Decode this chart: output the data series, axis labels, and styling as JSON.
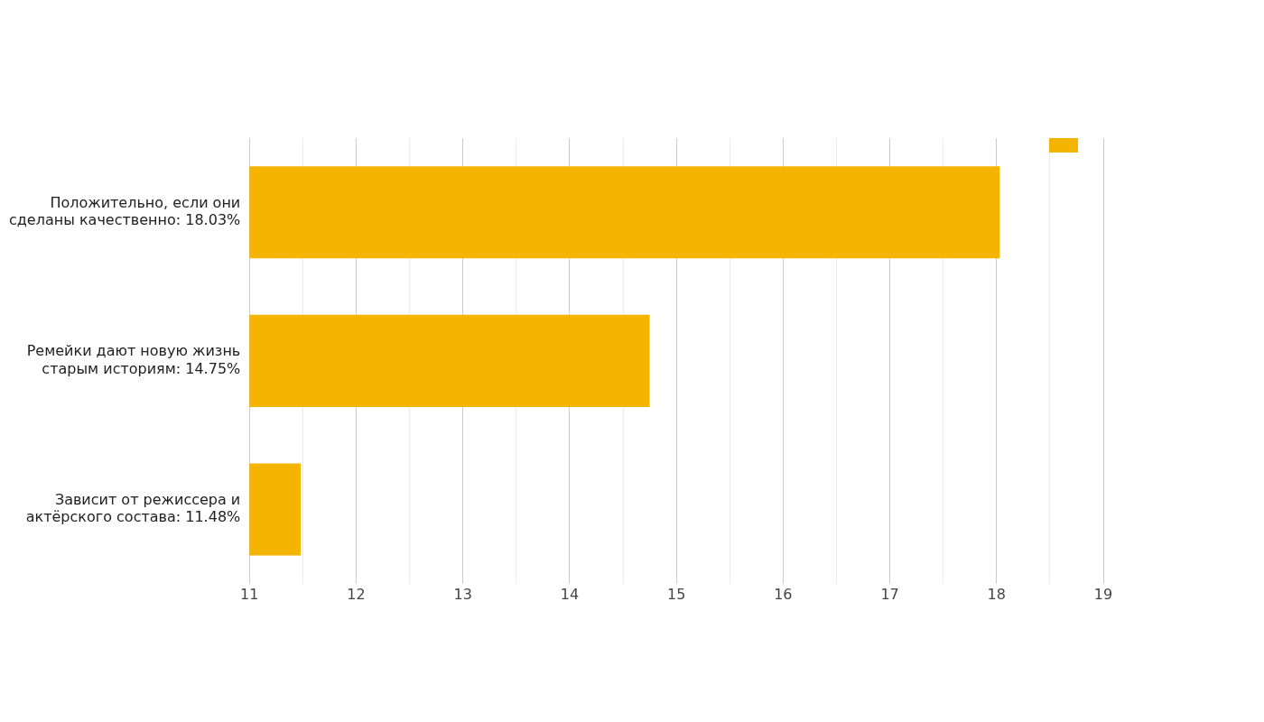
{
  "chart_data": {
    "type": "bar",
    "orientation": "horizontal",
    "categories": [
      "Положительно, если они сделаны качественно: 18.03%",
      "Ремейки дают новую жизнь старым историям: 14.75%",
      "Зависит от режиссера и актёрского состава: 11.48%"
    ],
    "series": [
      {
        "color": "#f4b400",
        "values": [
          18.03,
          14.75,
          11.48
        ]
      }
    ],
    "xlim": [
      11,
      19
    ],
    "xticks": [
      11,
      {
        "value": 11.5,
        "label": null
      },
      12,
      {
        "value": 12.5,
        "label": null
      },
      13,
      {
        "value": 13.5,
        "label": null
      },
      14,
      {
        "value": 14.5,
        "label": null
      },
      15,
      {
        "value": 15.5,
        "label": null
      },
      16,
      {
        "value": 16.5,
        "label": null
      },
      17,
      {
        "value": 17.5,
        "label": null
      },
      18,
      {
        "value": 18.5,
        "label": null
      },
      19
    ],
    "grid": "x"
  }
}
